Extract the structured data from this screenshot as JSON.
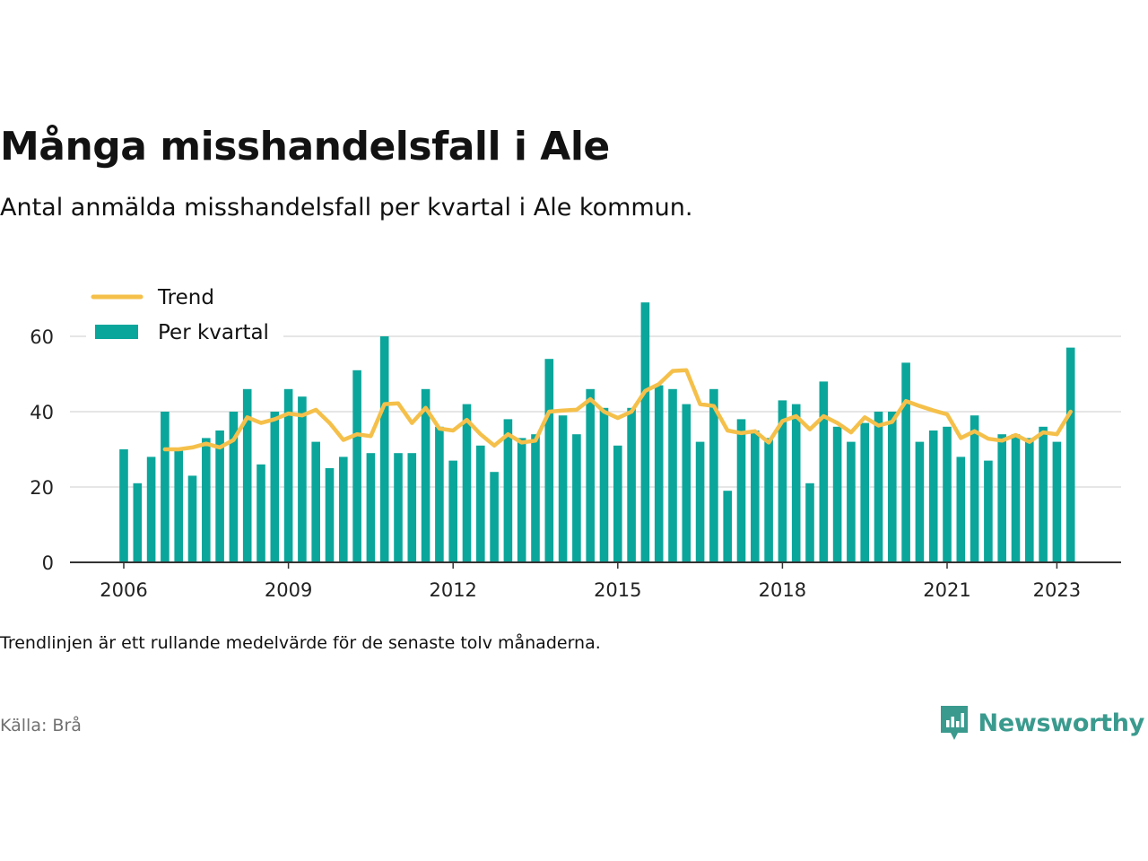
{
  "title": "Många misshandelsfall i Ale",
  "subtitle": "Antal anmälda misshandelsfall per kvartal i Ale kommun.",
  "note": "Trendlinjen är ett rullande medelvärde för de senaste tolv månaderna.",
  "source": "Källa: Brå",
  "brand": "Newsworthy",
  "colors": {
    "bar": "#0ba69b",
    "trend": "#f5c04a",
    "grid": "#dddddd",
    "axis": "#333333",
    "brand": "#3a9a8e"
  },
  "chart_data": {
    "type": "bar",
    "x_start_year": 2006,
    "period": "quarter",
    "xticks": [
      "2006",
      "2009",
      "2012",
      "2015",
      "2018",
      "2021",
      "2023"
    ],
    "yticks": [
      0,
      20,
      40,
      60
    ],
    "ylim": [
      0,
      70
    ],
    "grid": true,
    "legend_position": "top-left",
    "series": [
      {
        "name": "Per kvartal",
        "type": "bar",
        "values": [
          30,
          21,
          28,
          40,
          30,
          23,
          33,
          35,
          40,
          46,
          26,
          40,
          46,
          44,
          32,
          25,
          28,
          51,
          29,
          60,
          29,
          29,
          46,
          36,
          27,
          42,
          31,
          24,
          38,
          33,
          34,
          54,
          39,
          34,
          46,
          41,
          31,
          41,
          69,
          47,
          46,
          42,
          32,
          46,
          19,
          38,
          35,
          33,
          43,
          42,
          21,
          48,
          36,
          32,
          37,
          40,
          40,
          53,
          32,
          35,
          36,
          28,
          39,
          27,
          34,
          34,
          33,
          36,
          32,
          57
        ]
      },
      {
        "name": "Trend",
        "type": "line",
        "start_index": 3,
        "values": [
          30,
          30,
          30.5,
          31.5,
          30.5,
          32.5,
          38.5,
          37,
          38,
          39.5,
          39,
          40.5,
          37,
          32.5,
          34,
          33.5,
          42,
          42.2,
          37,
          41,
          35.5,
          35,
          37.8,
          34,
          31,
          34,
          31.8,
          32.3,
          40,
          40.3,
          40.5,
          43.3,
          40,
          38.3,
          40,
          45.5,
          47.3,
          50.8,
          51,
          42,
          41.5,
          35,
          34.3,
          34.8,
          31.8,
          37.5,
          38.8,
          35.3,
          38.8,
          37,
          34.5,
          38.5,
          36.3,
          37.3,
          42.8,
          41.5,
          40.3,
          39.3,
          33,
          34.8,
          32.8,
          32.3,
          33.8,
          32,
          34.5,
          34,
          40
        ]
      }
    ]
  }
}
